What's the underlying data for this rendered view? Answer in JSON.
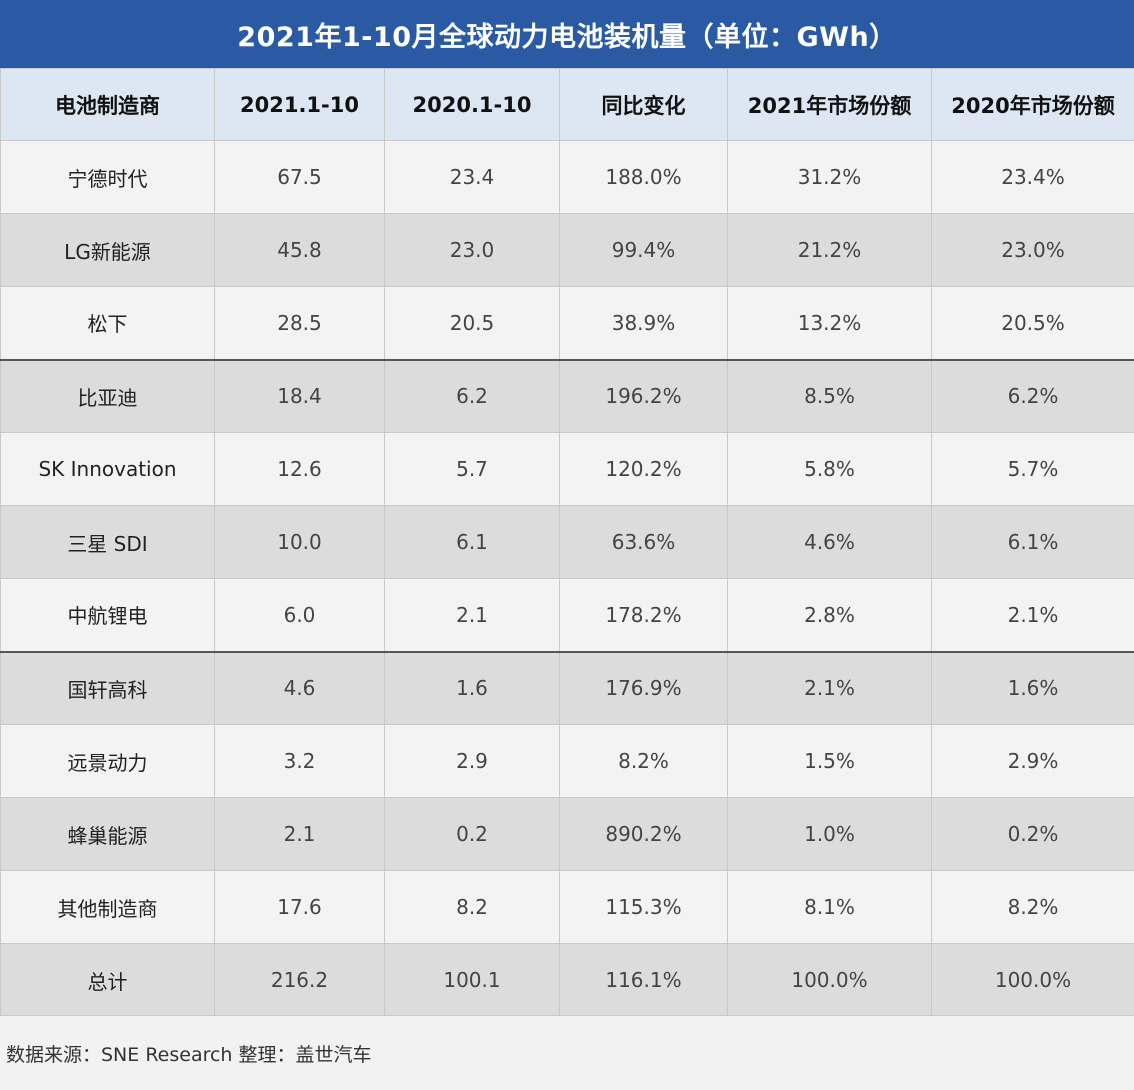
{
  "title": "2021年1-10月全球动力电池装机量（单位：GWh）",
  "headers": [
    "电池制造商",
    "2021.1-10",
    "2020.1-10",
    "同比变化",
    "2021年市场份额",
    "2020年市场份额"
  ],
  "rows": [
    [
      "宁德时代",
      "67.5",
      "23.4",
      "188.0%",
      "31.2%",
      "23.4%"
    ],
    [
      "LG新能源",
      "45.8",
      "23.0",
      "99.4%",
      "21.2%",
      "23.0%"
    ],
    [
      "松下",
      "28.5",
      "20.5",
      "38.9%",
      "13.2%",
      "20.5%"
    ],
    [
      "比亚迪",
      "18.4",
      "6.2",
      "196.2%",
      "8.5%",
      "6.2%"
    ],
    [
      "SK Innovation",
      "12.6",
      "5.7",
      "120.2%",
      "5.8%",
      "5.7%"
    ],
    [
      "三星 SDI",
      "10.0",
      "6.1",
      "63.6%",
      "4.6%",
      "6.1%"
    ],
    [
      "中航锂电",
      "6.0",
      "2.1",
      "178.2%",
      "2.8%",
      "2.1%"
    ],
    [
      "国轩高科",
      "4.6",
      "1.6",
      "176.9%",
      "2.1%",
      "1.6%"
    ],
    [
      "远景动力",
      "3.2",
      "2.9",
      "8.2%",
      "1.5%",
      "2.9%"
    ],
    [
      "蜂巢能源",
      "2.1",
      "0.2",
      "890.2%",
      "1.0%",
      "0.2%"
    ],
    [
      "其他制造商",
      "17.6",
      "8.2",
      "115.3%",
      "8.1%",
      "8.2%"
    ],
    [
      "总计",
      "216.2",
      "100.1",
      "116.1%",
      "100.0%",
      "100.0%"
    ]
  ],
  "source": "数据来源：SNE Research  整理：盖世汽车",
  "colors": {
    "title_bg": "#2a5aa4",
    "header_bg": "#dde6f3",
    "row_light": "#f3f3f3",
    "row_dark": "#dcdcdc"
  }
}
